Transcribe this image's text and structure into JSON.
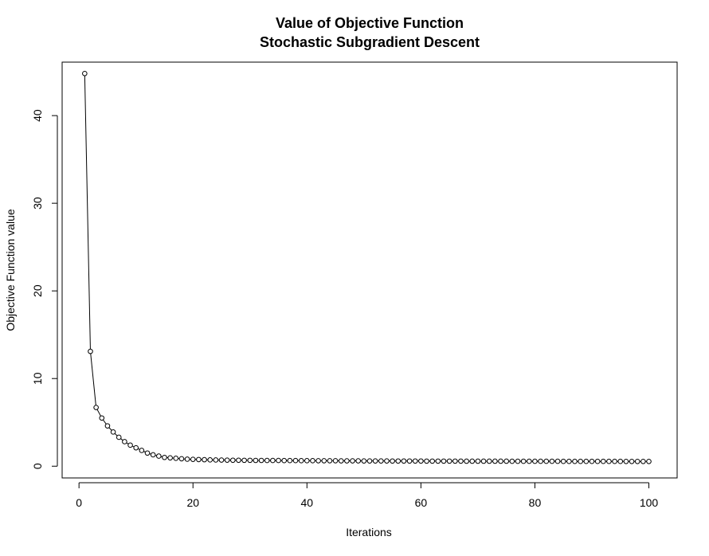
{
  "chart_data": {
    "type": "line",
    "title": "Value of Objective Function",
    "subtitle": "Stochastic Subgradient Descent",
    "xlabel": "Iterations",
    "ylabel": "Objective Function value",
    "xlim": [
      -2.96,
      104.96
    ],
    "ylim": [
      -1.34,
      46.1
    ],
    "x_ticks": [
      0,
      20,
      40,
      60,
      80,
      100
    ],
    "y_ticks": [
      0,
      10,
      20,
      30,
      40
    ],
    "x_tick_labels": [
      "0",
      "20",
      "40",
      "60",
      "80",
      "100"
    ],
    "y_tick_labels": [
      "0",
      "10",
      "20",
      "30",
      "40"
    ],
    "grid": false,
    "legend": "none",
    "markers": "open-circle",
    "line_color": "#000000",
    "series": [
      {
        "x": [
          1,
          2,
          3,
          4,
          5,
          6,
          7,
          8,
          9,
          10,
          11,
          12,
          13,
          14,
          15,
          16,
          17,
          18,
          19,
          20,
          21,
          22,
          23,
          24,
          25,
          26,
          27,
          28,
          29,
          30,
          31,
          32,
          33,
          34,
          35,
          36,
          37,
          38,
          39,
          40,
          41,
          42,
          43,
          44,
          45,
          46,
          47,
          48,
          49,
          50,
          51,
          52,
          53,
          54,
          55,
          56,
          57,
          58,
          59,
          60,
          61,
          62,
          63,
          64,
          65,
          66,
          67,
          68,
          69,
          70,
          71,
          72,
          73,
          74,
          75,
          76,
          77,
          78,
          79,
          80,
          81,
          82,
          83,
          84,
          85,
          86,
          87,
          88,
          89,
          90,
          91,
          92,
          93,
          94,
          95,
          96,
          97,
          98,
          99,
          100
        ],
        "y": [
          44.8,
          13.1,
          6.7,
          5.5,
          4.6,
          3.9,
          3.3,
          2.8,
          2.4,
          2.1,
          1.8,
          1.5,
          1.3,
          1.15,
          1.0,
          0.95,
          0.9,
          0.85,
          0.8,
          0.78,
          0.76,
          0.74,
          0.72,
          0.71,
          0.7,
          0.69,
          0.68,
          0.68,
          0.67,
          0.67,
          0.66,
          0.66,
          0.65,
          0.65,
          0.65,
          0.64,
          0.64,
          0.64,
          0.63,
          0.63,
          0.63,
          0.62,
          0.62,
          0.62,
          0.62,
          0.61,
          0.61,
          0.61,
          0.61,
          0.6,
          0.6,
          0.6,
          0.6,
          0.6,
          0.59,
          0.59,
          0.59,
          0.59,
          0.59,
          0.59,
          0.58,
          0.58,
          0.58,
          0.58,
          0.58,
          0.58,
          0.58,
          0.57,
          0.57,
          0.57,
          0.57,
          0.57,
          0.57,
          0.57,
          0.57,
          0.56,
          0.56,
          0.56,
          0.56,
          0.56,
          0.56,
          0.56,
          0.56,
          0.56,
          0.55,
          0.55,
          0.55,
          0.55,
          0.55,
          0.55,
          0.55,
          0.55,
          0.55,
          0.55,
          0.55,
          0.54,
          0.54,
          0.54,
          0.54,
          0.54
        ]
      }
    ]
  }
}
